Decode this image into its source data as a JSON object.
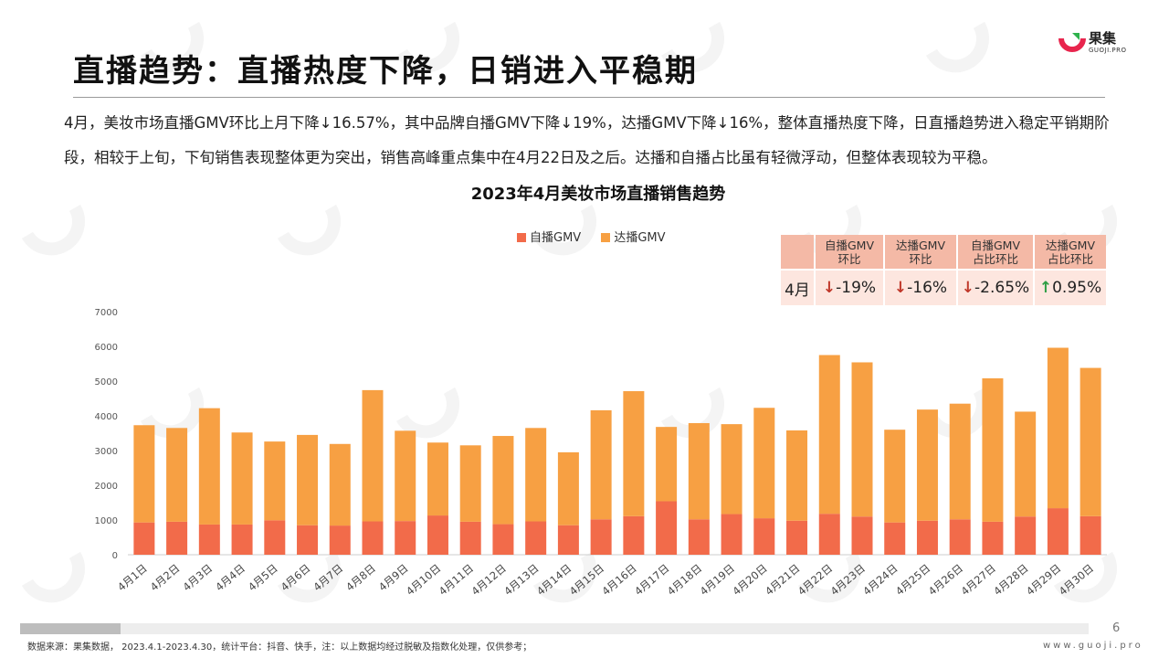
{
  "header": {
    "title": "直播趋势：直播热度下降，日销进入平稳期",
    "logo_name": "果集",
    "logo_sub": "GUOJI.PRO"
  },
  "intro": "4月，美妆市场直播GMV环比上月下降↓16.57%，其中品牌自播GMV下降↓19%，达播GMV下降↓16%，整体直播热度下降，日直播趋势进入稳定平销期阶段，相较于上旬，下旬销售表现整体更为突出，销售高峰重点集中在4月22日及之后。达播和自播占比虽有轻微浮动，但整体表现较为平稳。",
  "kpi_table": {
    "headers": [
      "自播GMV环比",
      "达播GMV环比",
      "自播GMV占比环比",
      "达播GMV占比环比"
    ],
    "row_label": "4月",
    "values": [
      {
        "arrow": "↓",
        "direction": "down",
        "value": "-19%"
      },
      {
        "arrow": "↓",
        "direction": "down",
        "value": "-16%"
      },
      {
        "arrow": "↓",
        "direction": "down",
        "value": "-2.65%"
      },
      {
        "arrow": "↑",
        "direction": "up",
        "value": "0.95%"
      }
    ]
  },
  "chart_data": {
    "type": "bar",
    "stacked": true,
    "title": "2023年4月美妆市场直播销售趋势",
    "categories": [
      "4月1日",
      "4月2日",
      "4月3日",
      "4月4日",
      "4月5日",
      "4月6日",
      "4月7日",
      "4月8日",
      "4月9日",
      "4月10日",
      "4月11日",
      "4月12日",
      "4月13日",
      "4月14日",
      "4月15日",
      "4月16日",
      "4月17日",
      "4月18日",
      "4月19日",
      "4月20日",
      "4月21日",
      "4月22日",
      "4月23日",
      "4月24日",
      "4月25日",
      "4月26日",
      "4月27日",
      "4月28日",
      "4月29日",
      "4月30日"
    ],
    "series": [
      {
        "name": "自播GMV",
        "color": "#f26b4a",
        "values": [
          930,
          950,
          870,
          870,
          990,
          850,
          840,
          960,
          970,
          1130,
          950,
          880,
          960,
          850,
          1020,
          1110,
          1540,
          1020,
          1170,
          1050,
          980,
          1180,
          1100,
          930,
          980,
          1020,
          950,
          1100,
          1340,
          1110
        ]
      },
      {
        "name": "达播GMV",
        "color": "#f7a043",
        "values": [
          2800,
          2700,
          3350,
          2650,
          2270,
          2600,
          2350,
          3780,
          2600,
          2100,
          2200,
          2540,
          2690,
          2100,
          3140,
          3600,
          2140,
          2770,
          2590,
          3180,
          2600,
          4570,
          4440,
          2670,
          3200,
          3330,
          4130,
          3020,
          4620,
          4270
        ]
      }
    ],
    "legend_position": "top",
    "ylim": [
      0,
      7000
    ],
    "yticks": [
      0,
      1000,
      2000,
      3000,
      4000,
      5000,
      6000,
      7000
    ],
    "grid": false
  },
  "footer": {
    "page_number": "6",
    "source": "数据来源：果集数据， 2023.4.1-2023.4.30，统计平台：抖音、快手，注：以上数据均经过脱敏及指数化处理，仅供参考；",
    "site": "www.guoji.pro"
  },
  "colors": {
    "self_broadcast": "#f26b4a",
    "influencer_broadcast": "#f7a043",
    "table_header": "#f4b9a6",
    "table_cell": "#fde6df"
  }
}
